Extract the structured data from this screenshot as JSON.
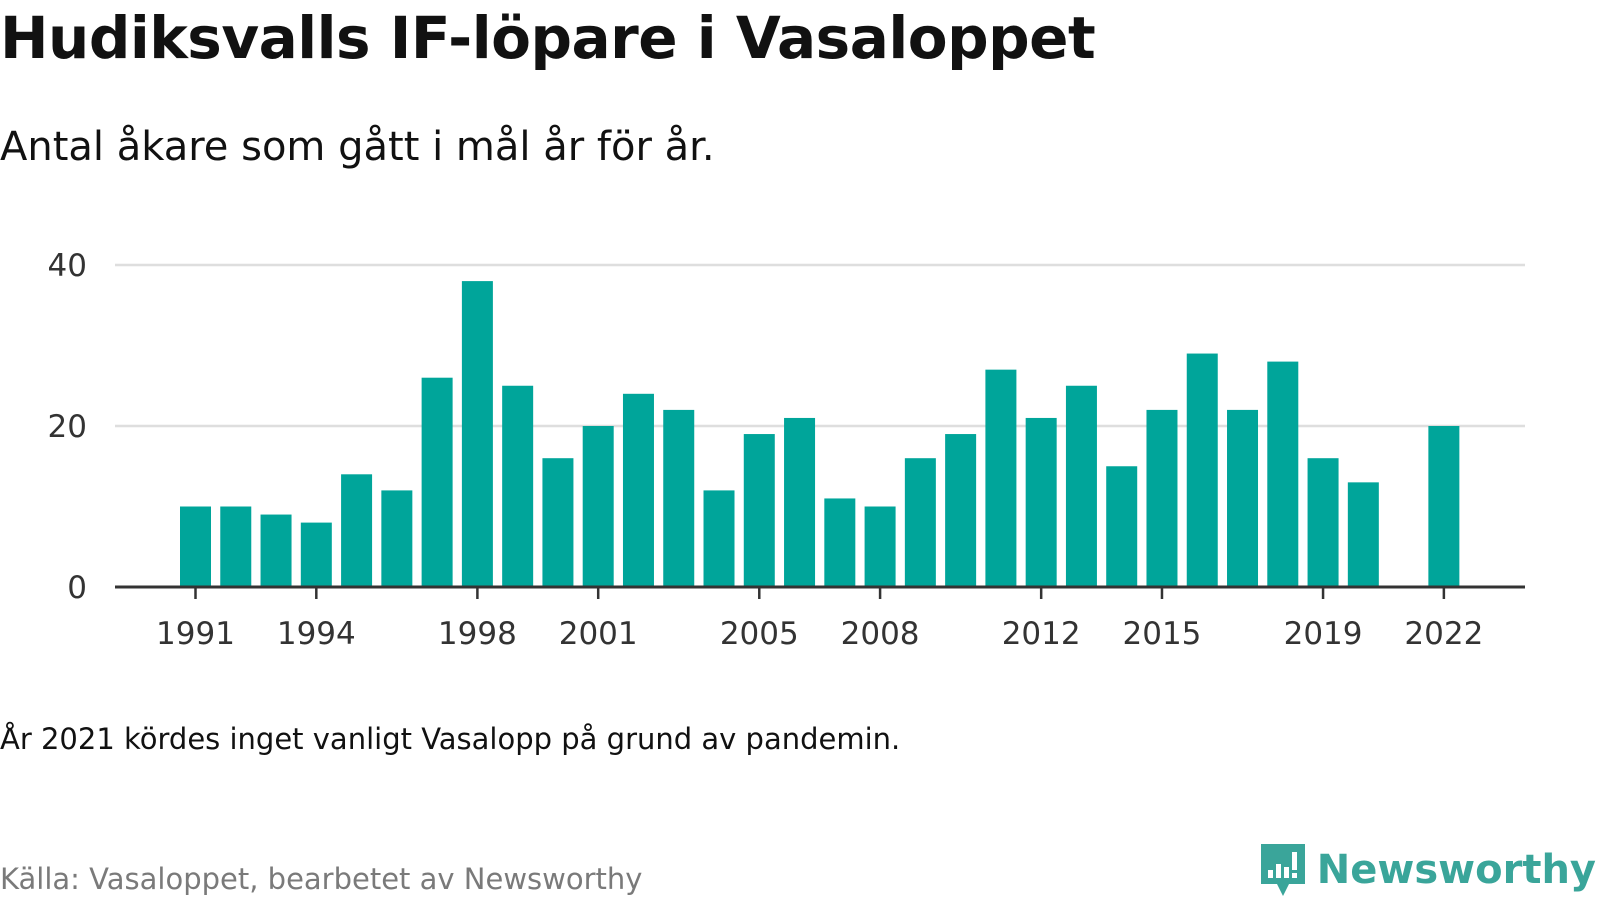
{
  "title": "Hudiksvalls IF-löpare i Vasaloppet",
  "subtitle": "Antal åkare som gått i mål år för år.",
  "note": "År 2021 kördes inget vanligt Vasalopp på grund av pandemin.",
  "source": "Källa: Vasaloppet, bearbetet av Newsworthy",
  "brand": {
    "name": "Newsworthy",
    "icon": "newsworthy-logo-icon"
  },
  "colors": {
    "bar": "#00a59a",
    "grid": "#dedede",
    "axis": "#333333",
    "tick_text": "#333333",
    "brand": "#3aa59a"
  },
  "chart_data": {
    "type": "bar",
    "title": "Hudiksvalls IF-löpare i Vasaloppet",
    "subtitle": "Antal åkare som gått i mål år för år.",
    "xlabel": "",
    "ylabel": "",
    "categories": [
      1991,
      1992,
      1993,
      1994,
      1995,
      1996,
      1997,
      1998,
      1999,
      2000,
      2001,
      2002,
      2003,
      2004,
      2005,
      2006,
      2007,
      2008,
      2009,
      2010,
      2011,
      2012,
      2013,
      2014,
      2015,
      2016,
      2017,
      2018,
      2019,
      2020,
      2021,
      2022
    ],
    "values": [
      10,
      10,
      9,
      8,
      14,
      12,
      26,
      38,
      25,
      16,
      20,
      24,
      22,
      12,
      19,
      21,
      11,
      10,
      16,
      19,
      27,
      21,
      25,
      15,
      22,
      29,
      22,
      28,
      16,
      13,
      null,
      20
    ],
    "x_tick_labels": [
      "1991",
      "1994",
      "1998",
      "2001",
      "2005",
      "2008",
      "2012",
      "2015",
      "2019",
      "2022"
    ],
    "y_ticks": [
      0,
      20,
      40
    ],
    "ylim": [
      0,
      40
    ],
    "grid": true,
    "legend": "none"
  }
}
